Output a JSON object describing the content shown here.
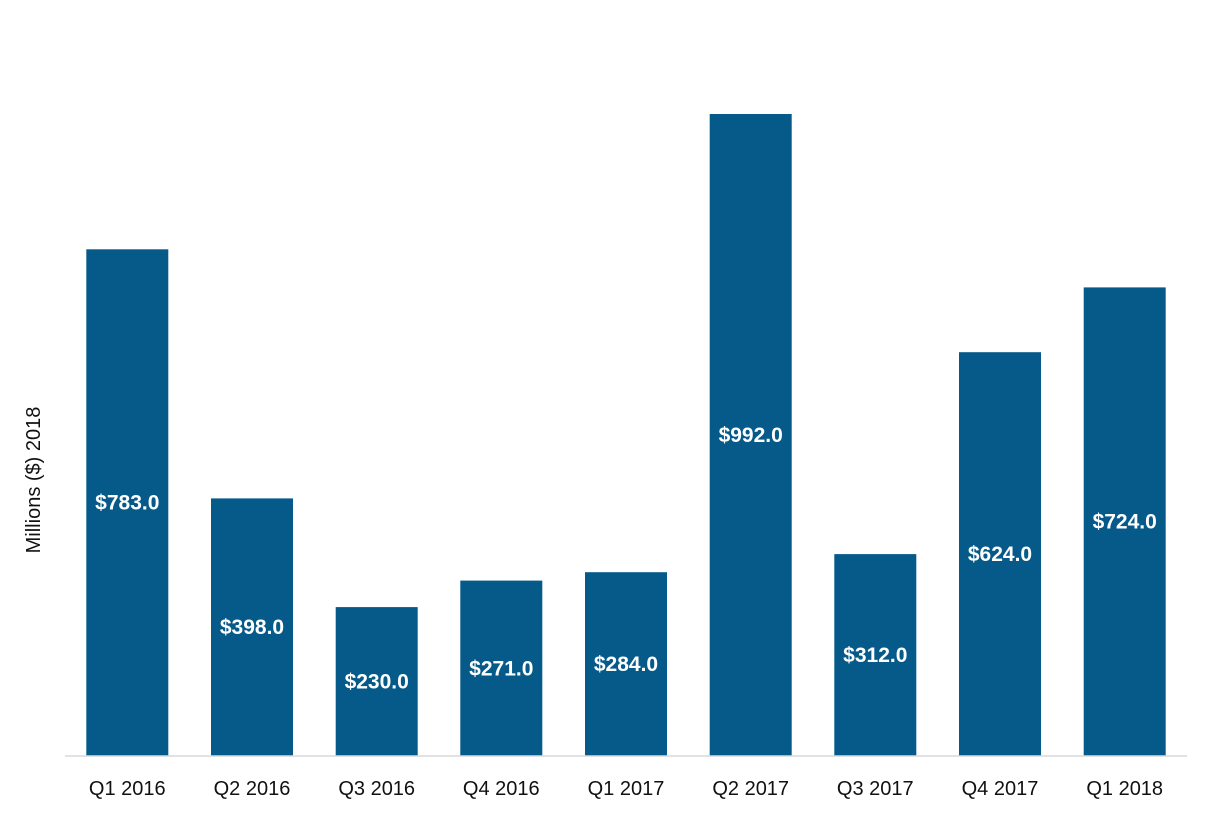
{
  "chart_data": {
    "type": "bar",
    "title": "",
    "xlabel": "",
    "ylabel": "Millions ($) 2018",
    "categories": [
      "Q1 2016",
      "Q2 2016",
      "Q3 2016",
      "Q4 2016",
      "Q1 2017",
      "Q2 2017",
      "Q3 2017",
      "Q4 2017",
      "Q1 2018"
    ],
    "values": [
      783.0,
      398.0,
      230.0,
      271.0,
      284.0,
      992.0,
      312.0,
      624.0,
      724.0
    ],
    "value_labels": [
      "$783.0",
      "$398.0",
      "$230.0",
      "$271.0",
      "$284.0",
      "$992.0",
      "$312.0",
      "$624.0",
      "$724.0"
    ],
    "ylim": [
      0,
      1000
    ],
    "grid": false,
    "legend": "none",
    "bar_color": "#065A8A",
    "label_color": "#FFFFFF",
    "axis_color": "#D9D9D9"
  }
}
